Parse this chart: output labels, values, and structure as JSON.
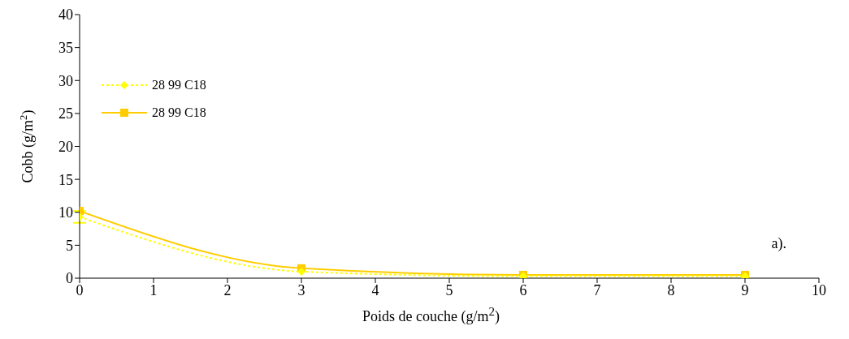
{
  "chart_data": {
    "type": "line",
    "xlabel": "Poids de couche (g/m$^{2}$)",
    "ylabel": "Cobb (g/m$^{2}$)",
    "x": [
      0,
      3,
      6,
      9
    ],
    "series": [
      {
        "name": "28 99 C18",
        "color": "#ffff00",
        "values": [
          9.3,
          1.0,
          0.3,
          0.3
        ],
        "errors": [
          0.9,
          null,
          null,
          null
        ],
        "marker": "diamond",
        "line_style": "dotted"
      },
      {
        "name": "28 99 C18",
        "color": "#ffcc00",
        "values": [
          10.2,
          1.5,
          0.5,
          0.5
        ],
        "marker": "square",
        "line_style": "solid"
      }
    ],
    "xlim": [
      0,
      10
    ],
    "xticks": [
      0,
      1,
      2,
      3,
      4,
      5,
      6,
      7,
      8,
      9,
      10
    ],
    "ylim": [
      0,
      40
    ],
    "yticks": [
      0,
      5,
      10,
      15,
      20,
      25,
      30,
      35,
      40
    ],
    "grid": false,
    "legend": "top left",
    "annotations": [
      "a)."
    ]
  }
}
